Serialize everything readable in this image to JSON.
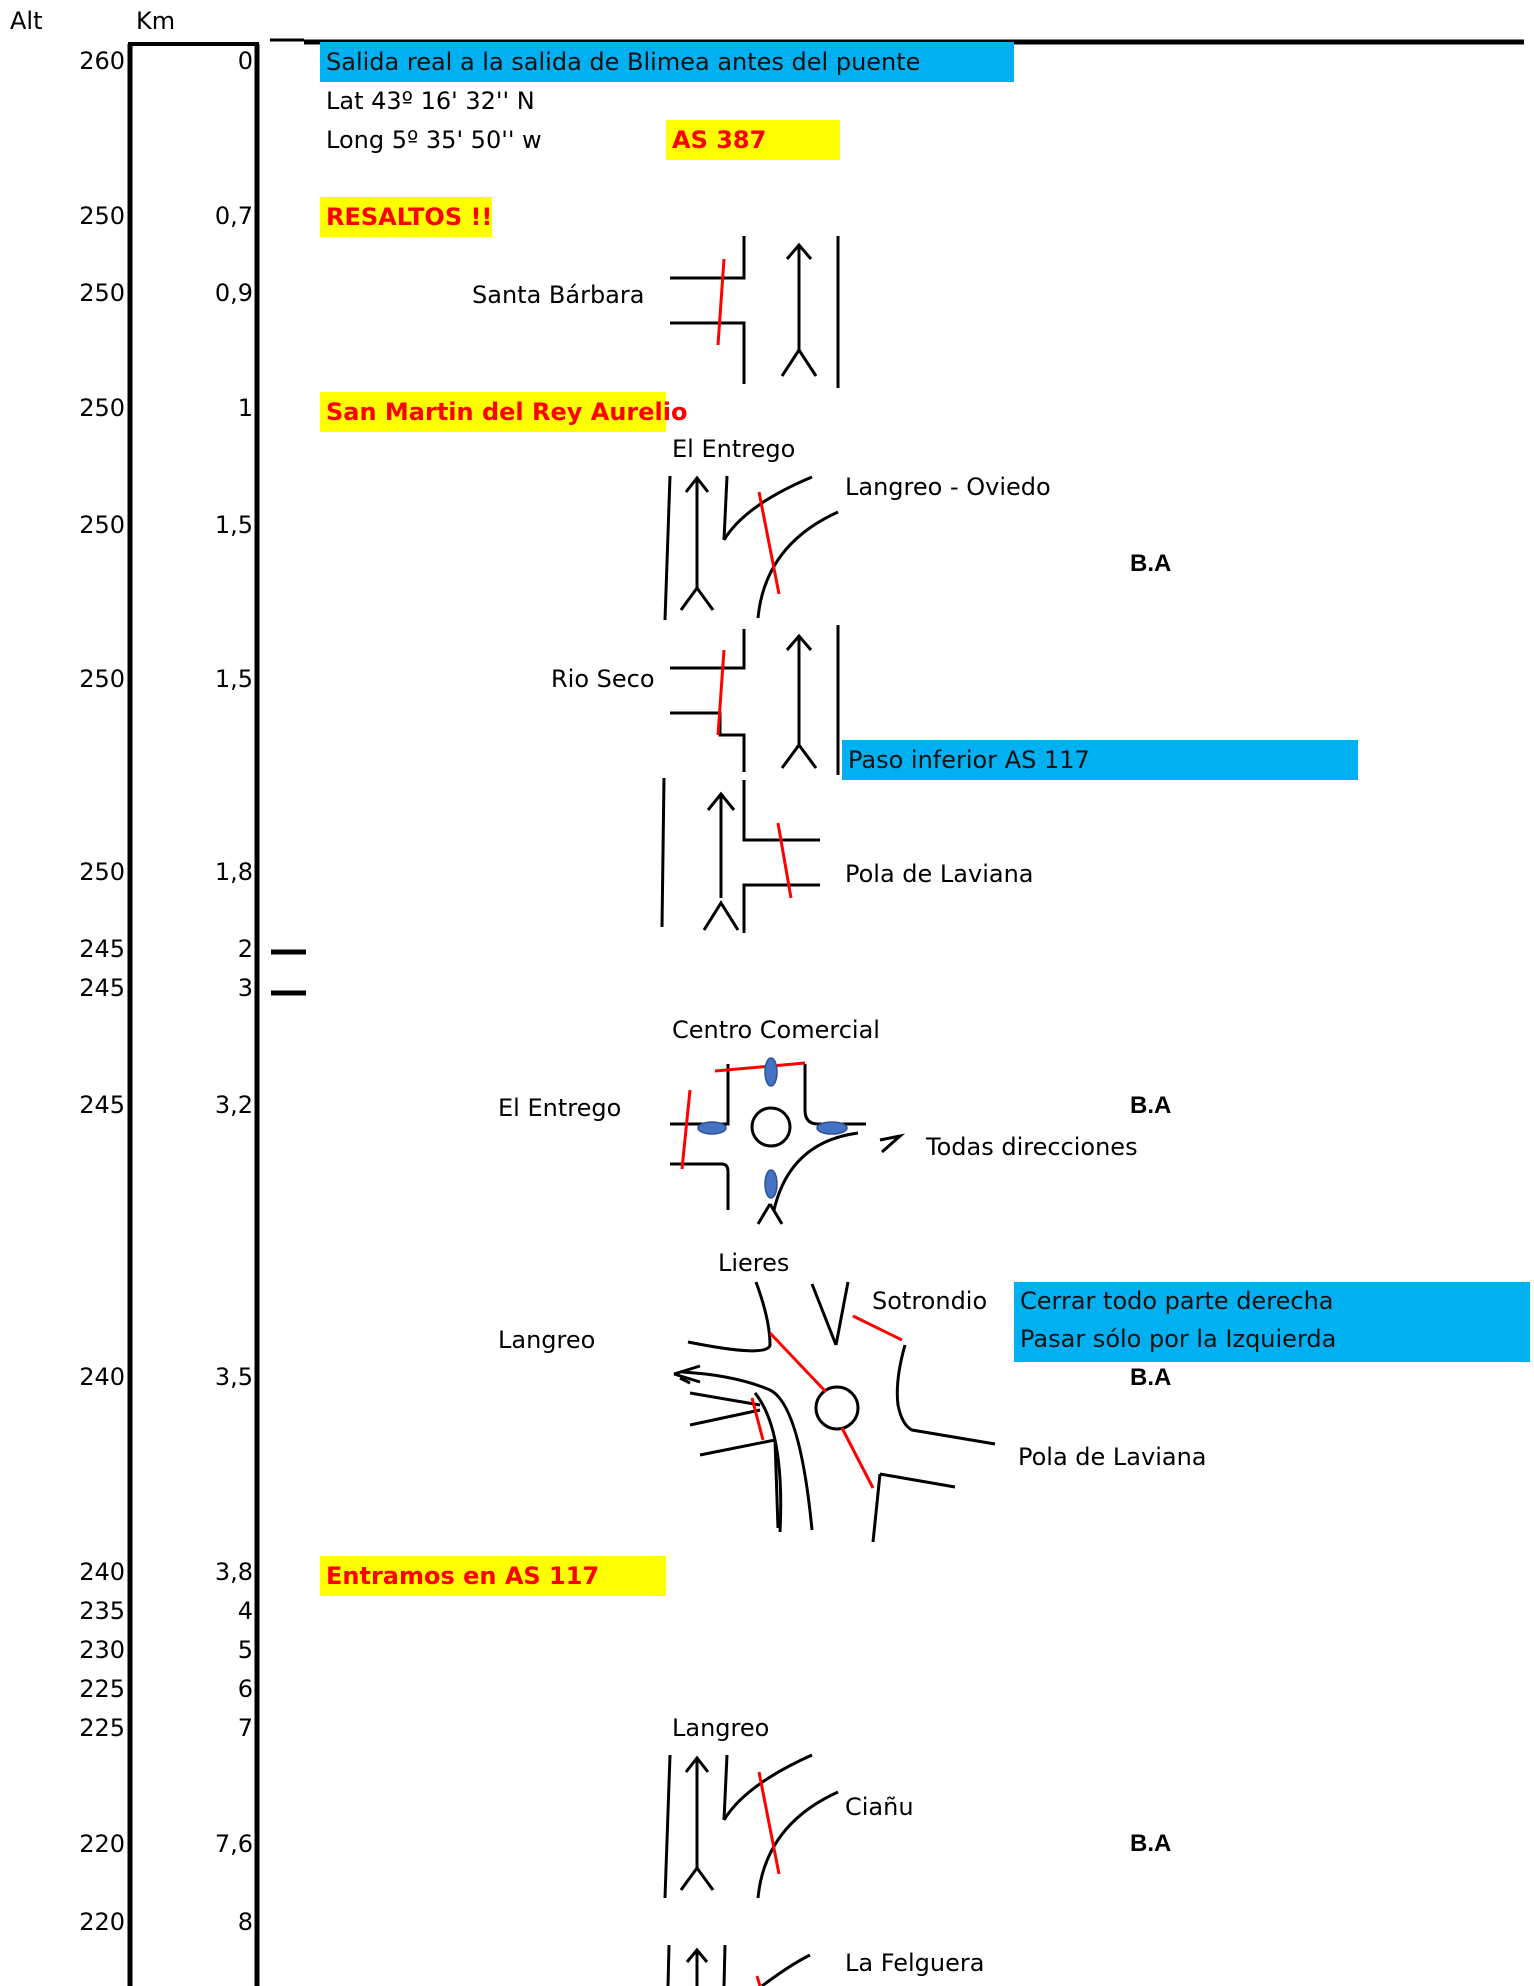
{
  "header": {
    "alt": "Alt",
    "km": "Km"
  },
  "rows": [
    {
      "alt": "260",
      "km": "0"
    },
    {
      "alt": "250",
      "km": "0,7"
    },
    {
      "alt": "250",
      "km": "0,9"
    },
    {
      "alt": "250",
      "km": "1"
    },
    {
      "alt": "250",
      "km": "1,5"
    },
    {
      "alt": "250",
      "km": "1,5"
    },
    {
      "alt": "250",
      "km": "1,8"
    },
    {
      "alt": "245",
      "km": "2"
    },
    {
      "alt": "245",
      "km": "3"
    },
    {
      "alt": "245",
      "km": "3,2"
    },
    {
      "alt": "240",
      "km": "3,5"
    },
    {
      "alt": "240",
      "km": "3,8"
    },
    {
      "alt": "235",
      "km": "4"
    },
    {
      "alt": "230",
      "km": "5"
    },
    {
      "alt": "225",
      "km": "6"
    },
    {
      "alt": "225",
      "km": "7"
    },
    {
      "alt": "220",
      "km": "7,6"
    },
    {
      "alt": "220",
      "km": "8"
    }
  ],
  "notes": {
    "salida": "Salida real a la salida de Blimea antes del puente",
    "lat": "Lat 43º 16' 32'' N",
    "long": "Long 5º 35' 50'' w",
    "as387": "AS 387",
    "resaltos": "RESALTOS !!",
    "san_martin": "San Martin del Rey Aurelio",
    "paso_inferior": "Paso inferior AS 117",
    "cerrar": "Cerrar todo parte derecha",
    "pasar": "Pasar sólo por la Izquierda",
    "entramos": "Entramos en AS 117"
  },
  "places": {
    "santa_barbara": "Santa Bárbara",
    "el_entrego_top": "El Entrego",
    "langreo_oviedo": "Langreo - Oviedo",
    "rio_seco": "Rio Seco",
    "pola_laviana_1": "Pola de Laviana",
    "centro_comercial": "Centro Comercial",
    "el_entrego_2": "El Entrego",
    "todas_direcciones": "Todas direcciones",
    "lieres": "Lieres",
    "sotrondio": "Sotrondio",
    "langreo_1": "Langreo",
    "pola_laviana_2": "Pola de Laviana",
    "langreo_2": "Langreo",
    "cianu": "Ciañu",
    "la_felguera": "La Felguera"
  },
  "ba": "B.A",
  "colors": {
    "blue_box": "#00b0f0",
    "yellow_box": "#ffff00",
    "red_text": "#ff0000",
    "red_line": "#ff0000",
    "island": "#4472c4"
  }
}
